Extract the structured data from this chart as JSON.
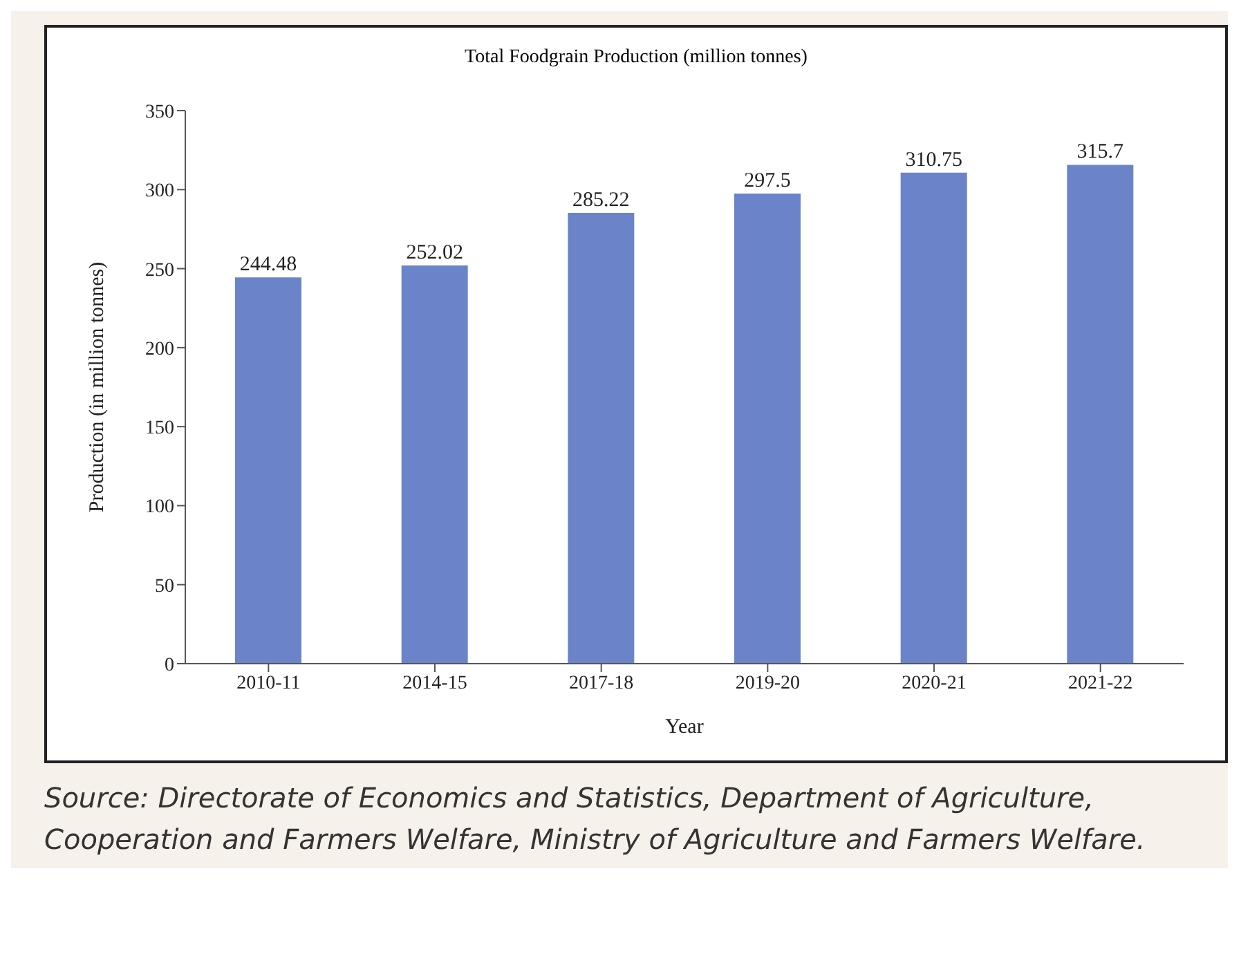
{
  "chart_data": {
    "type": "bar",
    "title": "Total Foodgrain Production (million tonnes)",
    "xlabel": "Year",
    "ylabel": "Production (in million tonnes)",
    "categories": [
      "2010-11",
      "2014-15",
      "2017-18",
      "2019-20",
      "2020-21",
      "2021-22"
    ],
    "values": [
      244.48,
      252.02,
      285.22,
      297.5,
      310.75,
      315.7
    ],
    "color": "#6b83c9",
    "ylim": [
      0,
      350
    ],
    "yticks": [
      0,
      50,
      100,
      150,
      200,
      250,
      300,
      350
    ],
    "grid": false,
    "data_labels": true,
    "annotations": [
      "Source: Directorate of Economics and Statistics, Department of Agriculture, Cooperation and Farmers Welfare, Ministry of Agriculture and Farmers Welfare."
    ]
  }
}
